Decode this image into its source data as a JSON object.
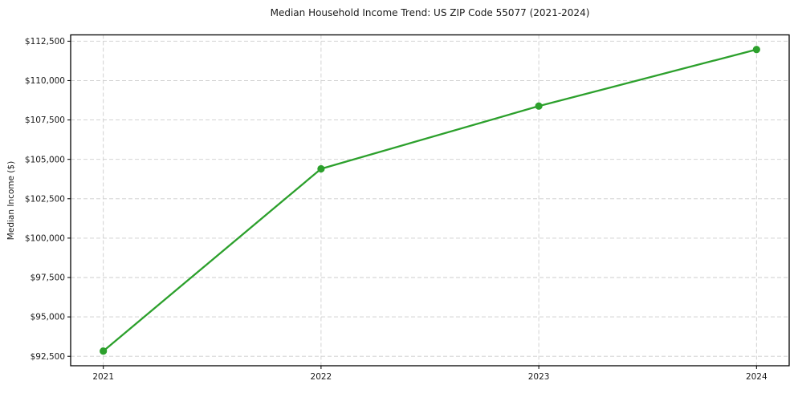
{
  "chart": {
    "title": "Median Household Income Trend: US ZIP Code 55077 (2021-2024)",
    "ylabel": "Median Income ($)"
  },
  "chart_data": {
    "type": "line",
    "title": "Median Household Income Trend: US ZIP Code 55077 (2021-2024)",
    "xlabel": "",
    "ylabel": "Median Income ($)",
    "x": [
      2021,
      2022,
      2023,
      2024
    ],
    "x_tick_labels": [
      "2021",
      "2022",
      "2023",
      "2024"
    ],
    "series": [
      {
        "name": "Median Household Income",
        "values": [
          92830,
          104400,
          108380,
          111970
        ]
      }
    ],
    "y_ticks": [
      92500,
      95000,
      97500,
      100000,
      102500,
      105000,
      107500,
      110000,
      112500
    ],
    "y_tick_labels": [
      "$92,500",
      "$95,000",
      "$97,500",
      "$100,000",
      "$102,500",
      "$105,000",
      "$107,500",
      "$110,000",
      "$112,500"
    ],
    "xlim": [
      2020.85,
      2024.15
    ],
    "ylim": [
      91900,
      112900
    ],
    "grid": true,
    "grid_style": "dashed",
    "grid_color": "#cdcdcd",
    "line_color": "#2ca02c",
    "marker": "circle",
    "axis_color": "#000000",
    "text_color": "#1a1a1a",
    "legend": "none"
  }
}
